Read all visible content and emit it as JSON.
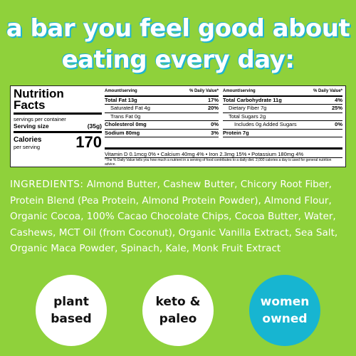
{
  "headline": {
    "line1": "a bar you feel good about",
    "line2": "eating every day:"
  },
  "nutrition": {
    "title_line1": "Nutrition",
    "title_line2": "Facts",
    "servings_per_container": "servings per container",
    "serving_size_label": "Serving size",
    "serving_size_value": "(35g)",
    "calories_label": "Calories",
    "calories_sub": "per serving",
    "calories_value": "170",
    "col1_header_left": "Amount/serving",
    "col1_header_right": "% Daily Value*",
    "col2_header_left": "Amount/serving",
    "col2_header_right": "% Daily Value*",
    "col1": [
      {
        "label": "Total Fat 13g",
        "dv": "17%"
      },
      {
        "label": "Saturated Fat 4g",
        "dv": "20%"
      },
      {
        "label": "Trans Fat 0g",
        "dv": ""
      },
      {
        "label": "Cholesterol 0mg",
        "dv": "0%"
      },
      {
        "label": "Sodium 80mg",
        "dv": "3%"
      }
    ],
    "col2": [
      {
        "label": "Total Carbohydrate 11g",
        "dv": "4%"
      },
      {
        "label": "Dietary Fiber 7g",
        "dv": "25%"
      },
      {
        "label": "Total Sugars 2g",
        "dv": ""
      },
      {
        "label": "Includes 0g Added Sugars",
        "dv": "0%"
      },
      {
        "label": "Protein 7g",
        "dv": ""
      }
    ],
    "vitamins": "Vitamin D 0.1mcg 0%  •  Calcium 40mg 4%  •  Iron 2.3mg 15%  •  Potassium 180mg 4%",
    "footnote": "*The % Daily Value tells you how much a nutrient in a serving of food contributes to a daily diet. 2,000 calories a day is used for general nutrition advice."
  },
  "ingredients": {
    "label": "INGREDIENTS:",
    "text": "Almond Butter, Cashew Butter, Chicory Root Fiber, Protein Blend (Pea Protein, Almond Protein Powder), Almond Flour, Organic Cocoa, 100% Cacao Chocolate Chips, Cocoa Butter, Water, Cashews, MCT Oil (from Coconut), Organic Vanilla Extract, Sea Salt, Organic Maca Powder, Spinach, Kale, Monk Fruit Extract"
  },
  "badges": {
    "b1_line1": "plant",
    "b1_line2": "based",
    "b2_line1": "keto &",
    "b2_line2": "paleo",
    "b3_line1": "women",
    "b3_line2": "owned"
  },
  "colors": {
    "background": "#8fd13b",
    "accent_teal": "#17b5d1",
    "text_white": "#ffffff"
  }
}
